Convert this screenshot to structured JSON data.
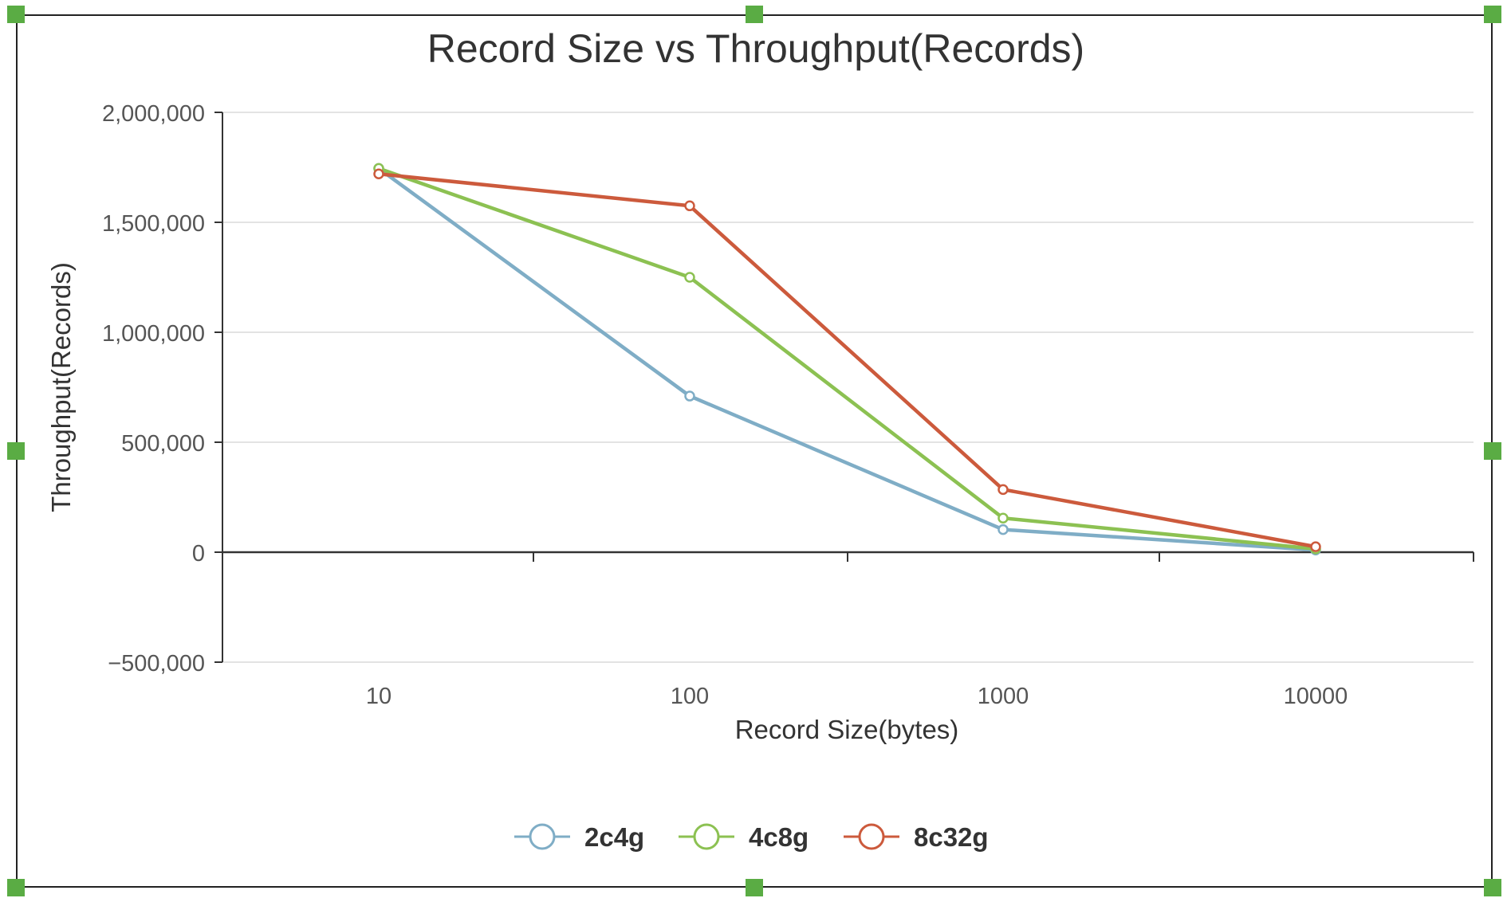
{
  "chart_data": {
    "type": "line",
    "title": "Record Size vs Throughput(Records)",
    "xlabel": "Record Size(bytes)",
    "ylabel": "Throughput(Records)",
    "categories": [
      "10",
      "100",
      "1000",
      "10000"
    ],
    "ylim": [
      -500000,
      2000000
    ],
    "yticks": [
      2000000,
      1500000,
      1000000,
      500000,
      0,
      -500000
    ],
    "ytick_labels": [
      "2,000,000",
      "1,500,000",
      "1,000,000",
      "500,000",
      "0",
      "−500,000"
    ],
    "grid": true,
    "legend_position": "bottom-center",
    "series": [
      {
        "name": "2c4g",
        "color": "#7fadc6",
        "values": [
          1745000,
          710000,
          103000,
          10000
        ]
      },
      {
        "name": "4c8g",
        "color": "#8cc152",
        "values": [
          1745000,
          1250000,
          155000,
          15000
        ]
      },
      {
        "name": "8c32g",
        "color": "#cc5a3c",
        "values": [
          1720000,
          1575000,
          285000,
          25000
        ]
      }
    ]
  }
}
